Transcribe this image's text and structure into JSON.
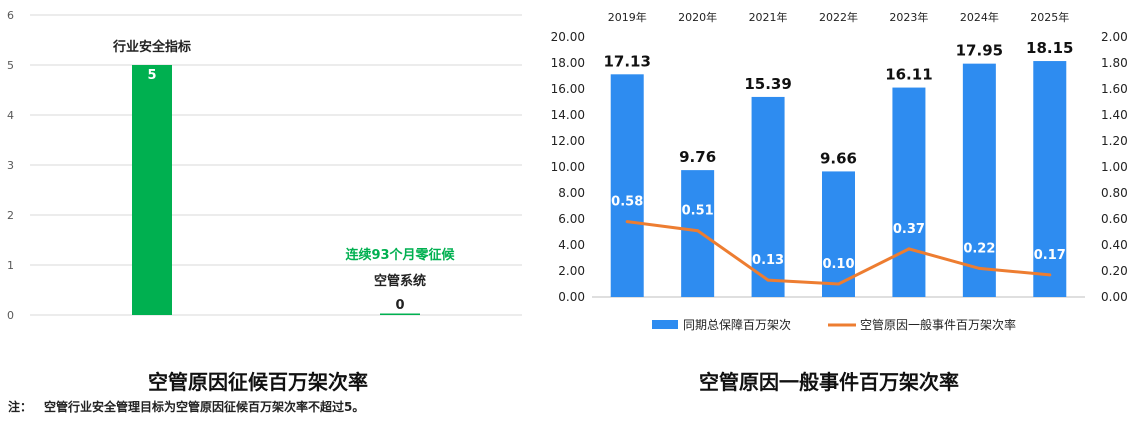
{
  "chart_data": [
    {
      "type": "bar",
      "title": "空管原因征候百万架次率",
      "ylim": [
        0,
        6
      ],
      "yticks": [
        "0",
        "1",
        "2",
        "3",
        "4",
        "5",
        "6"
      ],
      "grid": true,
      "categories": [
        "行业安全指标",
        "空管系统"
      ],
      "values": [
        5,
        0
      ],
      "value_labels": [
        "5",
        "0"
      ],
      "annotation": "连续93个月零征候",
      "colors": {
        "bar": "#00b050",
        "annotation": "#00b050",
        "grid": "#d9d9d9"
      }
    },
    {
      "type": "bar",
      "title": "空管原因一般事件百万架次率",
      "categories": [
        "2019年",
        "2020年",
        "2021年",
        "2022年",
        "2023年",
        "2024年",
        "2025年"
      ],
      "ylim": [
        0,
        20
      ],
      "y2lim": [
        0,
        2
      ],
      "yticks": [
        "0.00",
        "2.00",
        "4.00",
        "6.00",
        "8.00",
        "10.00",
        "12.00",
        "14.00",
        "16.00",
        "18.00",
        "20.00"
      ],
      "y2ticks": [
        "0.00",
        "0.20",
        "0.40",
        "0.60",
        "0.80",
        "1.00",
        "1.20",
        "1.40",
        "1.60",
        "1.80",
        "2.00"
      ],
      "legend_position": "bottom",
      "series": [
        {
          "name": "同期总保障百万架次",
          "type": "bar",
          "axis": "left",
          "values": [
            17.13,
            9.76,
            15.39,
            9.66,
            16.11,
            17.95,
            18.15
          ],
          "labels": [
            "17.13",
            "9.76",
            "15.39",
            "9.66",
            "16.11",
            "17.95",
            "18.15"
          ],
          "color": "#2e8cf0"
        },
        {
          "name": "空管原因一般事件百万架次率",
          "type": "line",
          "axis": "right",
          "values": [
            0.58,
            0.51,
            0.13,
            0.1,
            0.37,
            0.22,
            0.17
          ],
          "labels": [
            "0.58",
            "0.51",
            "0.13",
            "0.10",
            "0.37",
            "0.22",
            "0.17"
          ],
          "color": "#ed7d31"
        }
      ]
    }
  ],
  "note": {
    "lead": "注：",
    "text": "空管行业安全管理目标为空管原因征候百万架次率不超过5。"
  }
}
